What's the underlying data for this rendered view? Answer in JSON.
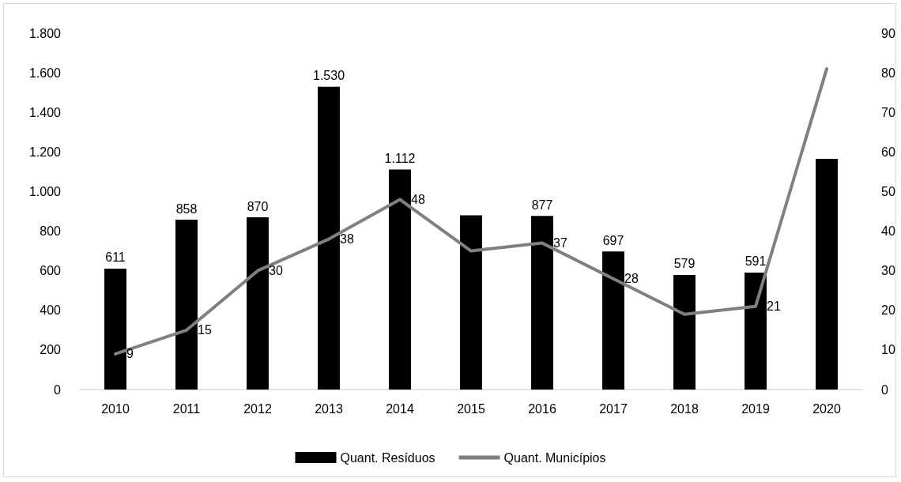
{
  "chart_data": {
    "type": "bar",
    "categories": [
      "2010",
      "2011",
      "2012",
      "2013",
      "2014",
      "2015",
      "2016",
      "2017",
      "2018",
      "2019",
      "2020"
    ],
    "series": [
      {
        "name": "Quant. Resíduos",
        "color": "#000000",
        "values": [
          611,
          858,
          870,
          1530,
          1112,
          880,
          877,
          697,
          579,
          591,
          1165
        ],
        "value_labels": [
          "611",
          "858",
          "870",
          "1.530",
          "1.112",
          null,
          "877",
          "697",
          "579",
          "591",
          null
        ]
      },
      {
        "name": "Quant. Municípios",
        "type": "line",
        "axis": "y2",
        "color": "#808080",
        "values": [
          9,
          15,
          30,
          38,
          48,
          35,
          37,
          28,
          19,
          21,
          81
        ],
        "value_labels": [
          "9",
          "15",
          "30",
          "38",
          "48",
          null,
          "37",
          "28",
          null,
          "21",
          null
        ]
      }
    ],
    "ylim": [
      0,
      1800
    ],
    "yticks": [
      0,
      200,
      400,
      600,
      800,
      {
        "value": 1000,
        "label": "1.000"
      },
      {
        "value": 1200,
        "label": "1.200"
      },
      {
        "value": 1400,
        "label": "1.400"
      },
      {
        "value": 1600,
        "label": "1.600"
      },
      {
        "value": 1800,
        "label": "1.800"
      }
    ],
    "y2lim": [
      0,
      90
    ],
    "y2ticks": [
      0,
      10,
      20,
      30,
      40,
      50,
      60,
      70,
      80,
      90
    ],
    "legend": "bottom",
    "marker": "none"
  }
}
